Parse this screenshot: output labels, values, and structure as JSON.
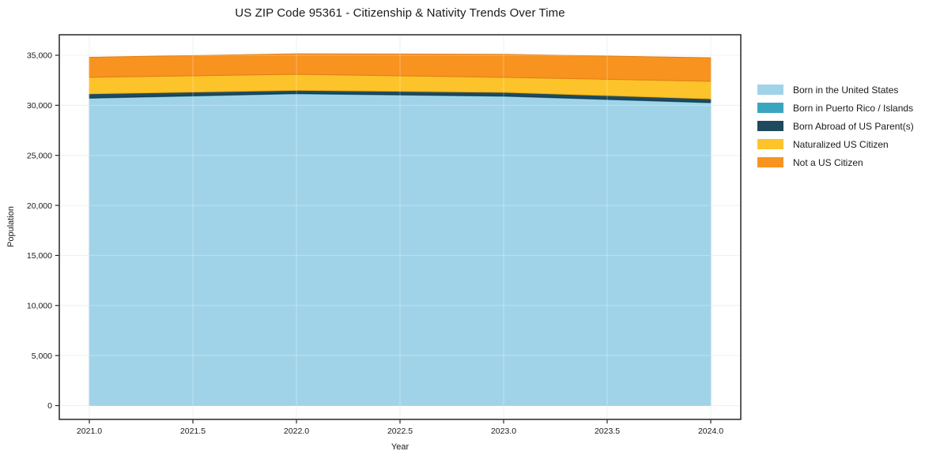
{
  "chart_data": {
    "type": "area",
    "stacked": true,
    "title": "US ZIP Code 95361 - Citizenship & Nativity Trends Over Time",
    "xlabel": "Year",
    "ylabel": "Population",
    "x": [
      2021,
      2022,
      2023,
      2024
    ],
    "series": [
      {
        "id": "born-in-us",
        "name": "Born in the United States",
        "color": "#A1D3E8",
        "edge": "#8AC2DC",
        "values": [
          30700,
          31150,
          30900,
          30250
        ]
      },
      {
        "id": "puerto-rico-islands",
        "name": "Born in Puerto Rico / Islands",
        "color": "#3AA5BF",
        "edge": "#2E8BA3",
        "values": [
          40,
          40,
          40,
          40
        ]
      },
      {
        "id": "born-abroad",
        "name": "Born Abroad of US Parent(s)",
        "color": "#1F4A5E",
        "edge": "#16374A",
        "values": [
          410,
          310,
          360,
          360
        ]
      },
      {
        "id": "naturalized",
        "name": "Naturalized US Citizen",
        "color": "#FDC32B",
        "edge": "#EAAC10",
        "values": [
          1650,
          1600,
          1500,
          1750
        ]
      },
      {
        "id": "not-citizen",
        "name": "Not a US Citizen",
        "color": "#F89320",
        "edge": "#E07E12",
        "values": [
          2000,
          2050,
          2300,
          2350
        ]
      }
    ],
    "xticks": {
      "values": [
        2021,
        2021.5,
        2022,
        2022.5,
        2023,
        2023.5,
        2024
      ],
      "labels": [
        "2021.0",
        "2021.5",
        "2022.0",
        "2022.5",
        "2023.0",
        "2023.5",
        "2024.0"
      ]
    },
    "yticks": {
      "values": [
        0,
        5000,
        10000,
        15000,
        20000,
        25000,
        30000,
        35000
      ],
      "labels": [
        "0",
        "5,000",
        "10,000",
        "15,000",
        "20,000",
        "25,000",
        "30,000",
        "35,000"
      ]
    },
    "xlim": [
      2020.855,
      2024.145
    ],
    "ylim": [
      -1380,
      37050
    ],
    "grid": true,
    "grid_color": "#ebebeb",
    "grid_over_color": "rgba(255,255,255,0.3)",
    "spine_color": "#262626",
    "text_color": "#1a1a1a",
    "legend_position": "right of plot, no border"
  }
}
